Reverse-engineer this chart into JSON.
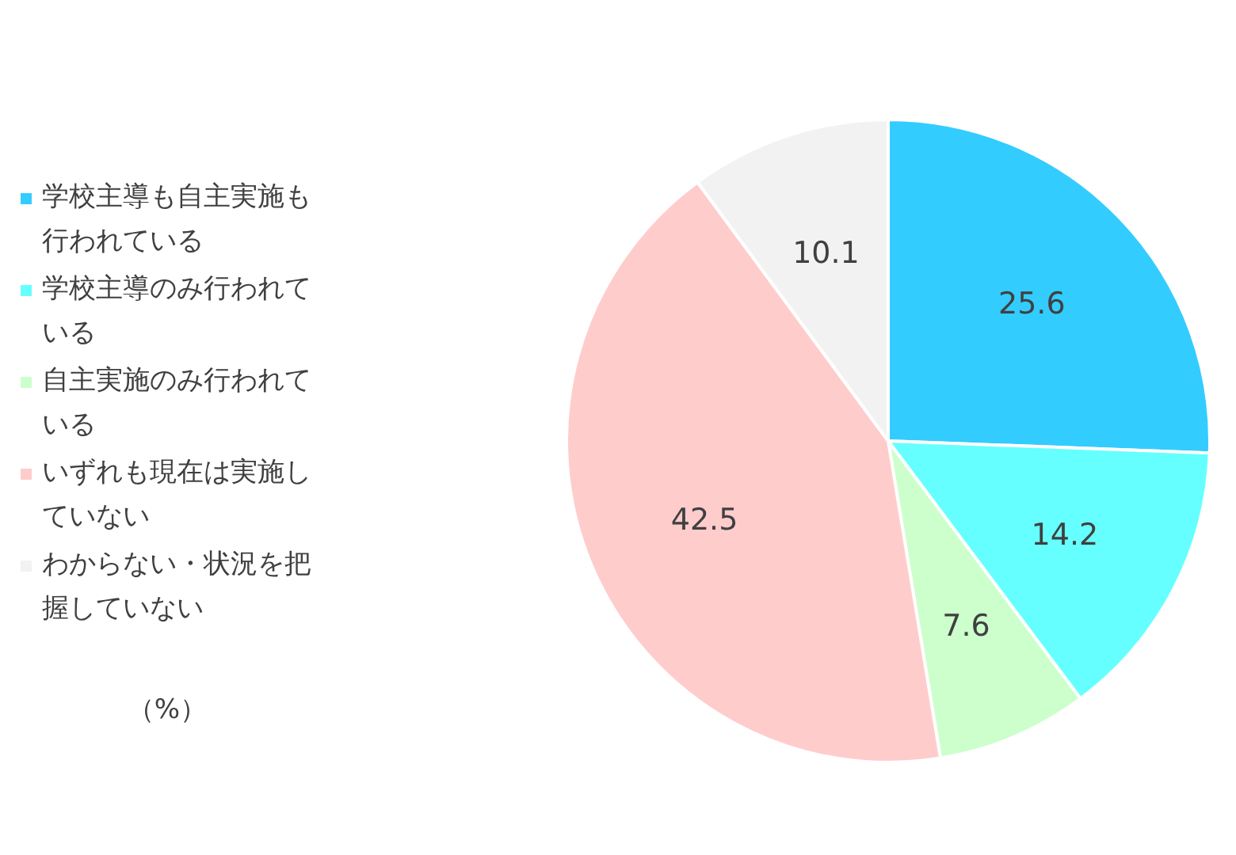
{
  "chart_data": {
    "type": "pie",
    "categories": [
      "学校主導も自主実施も行われている",
      "学校主導のみ行われている",
      "自主実施のみ行われている",
      "いずれも現在は実施していない",
      "わからない・状況を把握していない"
    ],
    "values": [
      25.6,
      14.2,
      7.6,
      42.5,
      10.1
    ],
    "colors": [
      "#33ccff",
      "#66ffff",
      "#ccffcc",
      "#ffcccc",
      "#f2f2f2"
    ],
    "data_labels": true,
    "legend": "left",
    "annotations": [
      "（%）"
    ]
  }
}
